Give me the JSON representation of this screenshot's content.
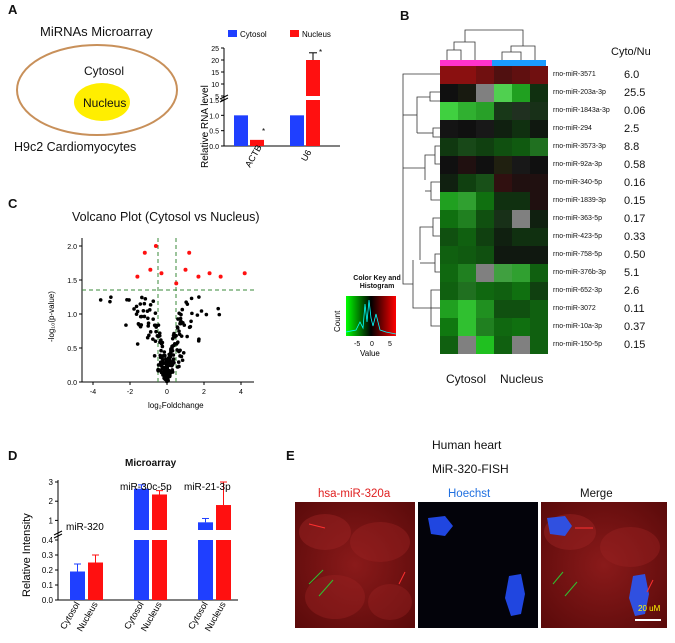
{
  "panelA": {
    "label": "A",
    "title": "MiRNAs Microarray",
    "outer_label": "Cytosol",
    "inner_label": "Nucleus",
    "cell_line": "H9c2 Cardiomyocytes",
    "ylabel": "Relative RNA level",
    "legend": [
      "Cytosol",
      "Nucleus"
    ],
    "categories": [
      "ACTB",
      "U6"
    ],
    "yticks_low": [
      "0.0",
      "0.5",
      "1.0",
      "1.5"
    ],
    "yticks_high": [
      "5",
      "10",
      "15",
      "20",
      "25"
    ],
    "star": "*"
  },
  "panelB": {
    "label": "B",
    "ratio_header": "Cyto/Nu",
    "rows": [
      {
        "name": "rno-miR-3571",
        "ratio": "6.0"
      },
      {
        "name": "rno-miR-203a-3p",
        "ratio": "25.5"
      },
      {
        "name": "rno-miR-1843a-3p",
        "ratio": "0.06"
      },
      {
        "name": "rno-miR-294",
        "ratio": "2.5"
      },
      {
        "name": "rno-miR-3573-3p",
        "ratio": "8.8"
      },
      {
        "name": "rno-miR-92a-3p",
        "ratio": "0.58"
      },
      {
        "name": "rno-miR-340-5p",
        "ratio": "0.16"
      },
      {
        "name": "rno-miR-1839-3p",
        "ratio": "0.15"
      },
      {
        "name": "rno-miR-363-5p",
        "ratio": "0.17"
      },
      {
        "name": "rno-miR-423-5p",
        "ratio": "0.33"
      },
      {
        "name": "rno-miR-758-5p",
        "ratio": "0.50"
      },
      {
        "name": "rno-miR-376b-3p",
        "ratio": "5.1"
      },
      {
        "name": "rno-miR-652-3p",
        "ratio": "2.6"
      },
      {
        "name": "rno-miR-3072",
        "ratio": "0.11"
      },
      {
        "name": "rno-miR-10a-3p",
        "ratio": "0.37"
      },
      {
        "name": "rno-miR-150-5p",
        "ratio": "0.15"
      }
    ],
    "heat_colors": [
      [
        "#8a1010",
        "#8a1010",
        "#701010",
        "#501010",
        "#601010",
        "#701010"
      ],
      [
        "#101010",
        "#181a10",
        "#808080",
        "#50d050",
        "#20a020",
        "#103010"
      ],
      [
        "#40d040",
        "#30b030",
        "#28a028",
        "#183818",
        "#203020",
        "#183018"
      ],
      [
        "#141414",
        "#101010",
        "#181818",
        "#102010",
        "#103010",
        "#101810"
      ],
      [
        "#103810",
        "#184818",
        "#104010",
        "#105010",
        "#105a10",
        "#207020"
      ],
      [
        "#101010",
        "#201010",
        "#101010",
        "#202010",
        "#181818",
        "#101010"
      ],
      [
        "#102010",
        "#104010",
        "#185018",
        "#301010",
        "#201010",
        "#201010"
      ],
      [
        "#20a020",
        "#30a030",
        "#107010",
        "#103010",
        "#103010",
        "#201010"
      ],
      [
        "#107010",
        "#208020",
        "#105010",
        "#183018",
        "#808080",
        "#102010"
      ],
      [
        "#105010",
        "#106010",
        "#104010",
        "#102010",
        "#103010",
        "#103010"
      ],
      [
        "#106010",
        "#105a10",
        "#105010",
        "#101810",
        "#101810",
        "#101810"
      ],
      [
        "#106810",
        "#208020",
        "#808080",
        "#40a040",
        "#30a030",
        "#106010"
      ],
      [
        "#106010",
        "#207020",
        "#106810",
        "#106010",
        "#107010",
        "#104010"
      ],
      [
        "#20a020",
        "#30c030",
        "#209020",
        "#105010",
        "#105010",
        "#106010"
      ],
      [
        "#107810",
        "#30c030",
        "#208020",
        "#106810",
        "#107010",
        "#106010"
      ],
      [
        "#106010",
        "#808080",
        "#20c020",
        "#106010",
        "#808080",
        "#106010"
      ]
    ],
    "col_labels": [
      "Cytosol",
      "Nucleus"
    ],
    "key_title": "Color Key and Histogram",
    "key_ylabel": "Count",
    "key_xlabel": "Value",
    "key_ticks": [
      "-5",
      "0",
      "5"
    ]
  },
  "panelC": {
    "label": "C",
    "title": "Volcano Plot (Cytosol vs Nucleus)",
    "ylabel": "-log₁₀(p-value)",
    "xlabel": "log₂Foldchange",
    "xticks": [
      "-4",
      "-2",
      "0",
      "2",
      "4"
    ],
    "yticks": [
      "0.0",
      "0.5",
      "1.0",
      "1.5",
      "2.0"
    ]
  },
  "panelD": {
    "label": "D",
    "title": "Microarray",
    "ylabel": "Relative Intensity",
    "groups": [
      {
        "name": "miR-320",
        "cytosol": 0.19,
        "nucleus": 0.25
      },
      {
        "name": "miR-30c-5p",
        "cytosol": 2.65,
        "nucleus": 2.35
      },
      {
        "name": "miR-21-3p",
        "cytosol": 0.9,
        "nucleus": 1.8
      }
    ],
    "xlabels": [
      "Cytosol",
      "Nucleus"
    ],
    "yticks_low": [
      "0.0",
      "0.1",
      "0.2",
      "0.3",
      "0.4"
    ],
    "yticks_high": [
      "1",
      "2",
      "3"
    ]
  },
  "panelE": {
    "label": "E",
    "title1": "Human heart",
    "title2": "MiR-320-FISH",
    "ch1": "hsa-miR-320a",
    "ch2": "Hoechst",
    "ch3": "Merge",
    "scale": "20 uM"
  },
  "colors": {
    "cytosol": "#1f3fff",
    "nucleus": "#ff1010",
    "membrane": "#c8905a",
    "nucleus_fill": "#ffee00"
  }
}
